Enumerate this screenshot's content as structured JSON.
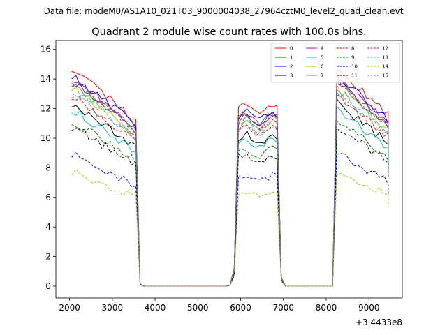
{
  "suptitle": "Data file: modeM0/AS1A10_021T03_9000004038_27964cztM0_level2_quad_clean.evt",
  "chart_data": {
    "type": "line",
    "title": "Quadrant 2 module wise count rates with 100.0s bins.",
    "xlabel": "",
    "ylabel": "",
    "x_offset_label": "+3.4433e8",
    "xlim": [
      1680,
      9780
    ],
    "ylim": [
      -0.8,
      16.6
    ],
    "xticks": [
      2000,
      3000,
      4000,
      5000,
      6000,
      7000,
      8000,
      9000
    ],
    "yticks": [
      0,
      2,
      4,
      6,
      8,
      10,
      12,
      14,
      16
    ],
    "legend_position": "upper-right",
    "segments": [
      {
        "start": 2050,
        "end": 3550,
        "shape": "decline",
        "drop": 0.24
      },
      {
        "start": 3650,
        "end": 3750,
        "values": [
          0.1,
          0.0
        ]
      },
      {
        "start": 3750,
        "end": 5650,
        "zero": true
      },
      {
        "start": 5750,
        "end": 5850,
        "values": [
          0.05,
          0.8
        ]
      },
      {
        "start": 5950,
        "end": 6850,
        "shape": "plateau",
        "scale": 0.83
      },
      {
        "start": 6950,
        "end": 7050,
        "values": [
          0.4,
          0.0
        ]
      },
      {
        "start": 7050,
        "end": 8150,
        "zero": true
      },
      {
        "start": 8250,
        "end": 9450,
        "shape": "decline",
        "scale": 1.0,
        "drop": 0.22
      },
      {
        "start": 9450,
        "end": 9450,
        "end_factor": 0.72
      }
    ],
    "series": [
      {
        "name": "0",
        "color": "#ff0000",
        "dash": false,
        "level": 14.8
      },
      {
        "name": "1",
        "color": "#008000",
        "dash": false,
        "level": 14.0
      },
      {
        "name": "2",
        "color": "#0000ff",
        "dash": false,
        "level": 14.3
      },
      {
        "name": "3",
        "color": "#000000",
        "dash": false,
        "level": 12.4
      },
      {
        "name": "4",
        "color": "#bf00bf",
        "dash": false,
        "level": 14.1
      },
      {
        "name": "5",
        "color": "#00bfbf",
        "dash": false,
        "level": 12.0
      },
      {
        "name": "6",
        "color": "#bfbf00",
        "dash": false,
        "level": 13.5
      },
      {
        "name": "7",
        "color": "#808080",
        "dash": false,
        "level": 13.8
      },
      {
        "name": "8",
        "color": "#ff0000",
        "dash": true,
        "level": 12.9
      },
      {
        "name": "9",
        "color": "#008000",
        "dash": true,
        "level": 11.2
      },
      {
        "name": "10",
        "color": "#0000ff",
        "dash": true,
        "level": 9.0
      },
      {
        "name": "11",
        "color": "#000000",
        "dash": true,
        "level": 10.8
      },
      {
        "name": "12",
        "color": "#bf00bf",
        "dash": true,
        "level": 13.8
      },
      {
        "name": "13",
        "color": "#00bfbf",
        "dash": true,
        "level": 13.3
      },
      {
        "name": "14",
        "color": "#bfbf00",
        "dash": true,
        "level": 7.8
      },
      {
        "name": "15",
        "color": "#808080",
        "dash": true,
        "level": 13.0
      }
    ]
  }
}
